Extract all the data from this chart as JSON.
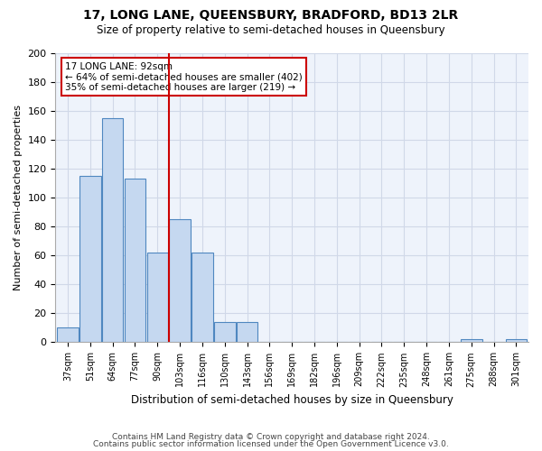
{
  "title": "17, LONG LANE, QUEENSBURY, BRADFORD, BD13 2LR",
  "subtitle": "Size of property relative to semi-detached houses in Queensbury",
  "xlabel": "Distribution of semi-detached houses by size in Queensbury",
  "ylabel": "Number of semi-detached properties",
  "bar_labels": [
    "37sqm",
    "51sqm",
    "64sqm",
    "77sqm",
    "90sqm",
    "103sqm",
    "116sqm",
    "130sqm",
    "143sqm",
    "156sqm",
    "169sqm",
    "182sqm",
    "196sqm",
    "209sqm",
    "222sqm",
    "235sqm",
    "248sqm",
    "261sqm",
    "275sqm",
    "288sqm",
    "301sqm"
  ],
  "bar_values": [
    10,
    115,
    155,
    113,
    62,
    85,
    62,
    14,
    14,
    0,
    0,
    0,
    0,
    0,
    0,
    0,
    0,
    0,
    2,
    0,
    2
  ],
  "bar_color": "#c5d8f0",
  "bar_edge_color": "#4f87c0",
  "vline_x": 4.5,
  "vline_color": "#cc0000",
  "annotation_title": "17 LONG LANE: 92sqm",
  "annotation_line1": "← 64% of semi-detached houses are smaller (402)",
  "annotation_line2": "35% of semi-detached houses are larger (219) →",
  "annotation_box_color": "#cc0000",
  "ylim": [
    0,
    200
  ],
  "yticks": [
    0,
    20,
    40,
    60,
    80,
    100,
    120,
    140,
    160,
    180,
    200
  ],
  "grid_color": "#d0d8e8",
  "bg_color": "#eef3fb",
  "footer1": "Contains HM Land Registry data © Crown copyright and database right 2024.",
  "footer2": "Contains public sector information licensed under the Open Government Licence v3.0."
}
